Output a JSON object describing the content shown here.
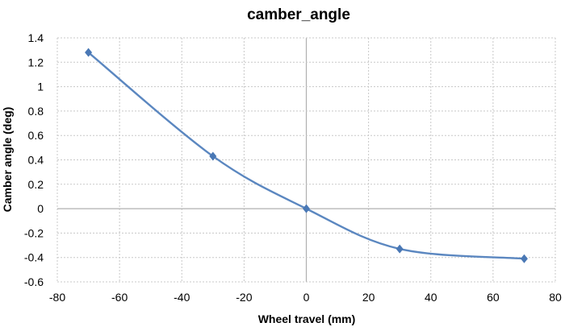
{
  "chart_data": {
    "type": "line",
    "title": "camber_angle",
    "xlabel": "Wheel travel (mm)",
    "ylabel": "Camber angle (deg)",
    "xlim": [
      -80,
      80
    ],
    "ylim": [
      -0.6,
      1.4
    ],
    "xticks": [
      -80,
      -60,
      -40,
      -20,
      0,
      20,
      40,
      60,
      80
    ],
    "yticks": [
      -0.6,
      -0.4,
      -0.2,
      0,
      0.2,
      0.4,
      0.6,
      0.8,
      1,
      1.2,
      1.4
    ],
    "grid": true,
    "smooth": true,
    "series": [
      {
        "name": "camber_angle",
        "color": "#5b87c0",
        "marker": "diamond",
        "x": [
          -70,
          -30,
          0,
          30,
          70
        ],
        "y": [
          1.28,
          0.43,
          0,
          -0.33,
          -0.41
        ]
      }
    ]
  }
}
